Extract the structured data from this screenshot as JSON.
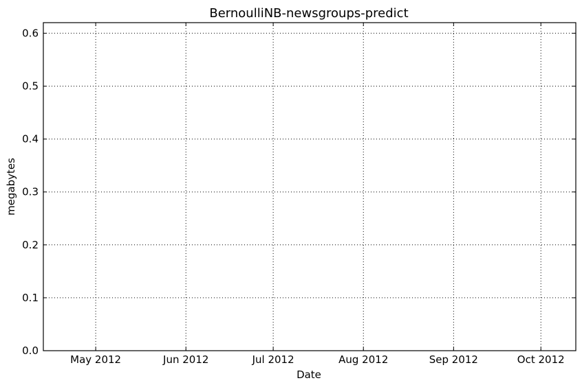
{
  "chart_data": {
    "type": "line",
    "title": "BernoulliNB-newsgroups-predict",
    "xlabel": "Date",
    "ylabel": "megabytes",
    "x_scale": "date",
    "xlim": [
      "2012-04-13",
      "2012-10-13"
    ],
    "ylim": [
      0,
      0.62
    ],
    "x_ticks": [
      {
        "date": "2012-05-01",
        "label": "May 2012"
      },
      {
        "date": "2012-06-01",
        "label": "Jun 2012"
      },
      {
        "date": "2012-07-01",
        "label": "Jul 2012"
      },
      {
        "date": "2012-08-01",
        "label": "Aug 2012"
      },
      {
        "date": "2012-09-01",
        "label": "Sep 2012"
      },
      {
        "date": "2012-10-01",
        "label": "Oct 2012"
      }
    ],
    "y_ticks": [
      {
        "value": 0.0,
        "label": "0.0"
      },
      {
        "value": 0.1,
        "label": "0.1"
      },
      {
        "value": 0.2,
        "label": "0.2"
      },
      {
        "value": 0.3,
        "label": "0.3"
      },
      {
        "value": 0.4,
        "label": "0.4"
      },
      {
        "value": 0.5,
        "label": "0.5"
      },
      {
        "value": 0.6,
        "label": "0.6"
      }
    ],
    "grid": true,
    "series": []
  }
}
